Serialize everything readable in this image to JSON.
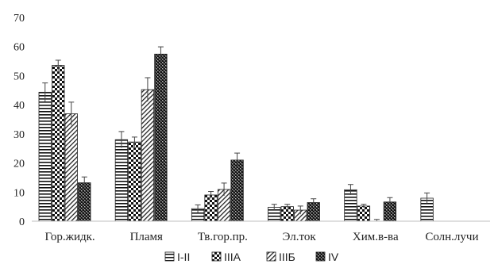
{
  "chart_data": {
    "type": "bar",
    "categories": [
      "Гор.жидк.",
      "Пламя",
      "Тв.гор.пр.",
      "Эл.ток",
      "Хим.в-ва",
      "Солн.лучи"
    ],
    "series": [
      {
        "name": "I-II",
        "values": [
          44.3,
          28.0,
          4.3,
          4.8,
          10.8,
          7.9
        ],
        "errors": [
          3.2,
          2.8,
          1.3,
          1.0,
          1.8,
          1.8
        ],
        "pattern": "hlines"
      },
      {
        "name": "IIIA",
        "values": [
          53.5,
          27.2,
          9.0,
          5.0,
          5.2,
          0
        ],
        "errors": [
          1.8,
          1.7,
          1.2,
          0.8,
          0.6,
          0
        ],
        "pattern": "checker"
      },
      {
        "name": "IIIБ",
        "values": [
          36.9,
          45.2,
          10.9,
          3.8,
          0,
          0
        ],
        "errors": [
          4.0,
          4.1,
          2.2,
          1.4,
          0.6,
          0
        ],
        "pattern": "diag"
      },
      {
        "name": "IV",
        "values": [
          13.2,
          57.4,
          21.0,
          6.4,
          6.6,
          0
        ],
        "errors": [
          2.0,
          2.5,
          2.4,
          1.3,
          1.5,
          0
        ],
        "pattern": "dense"
      }
    ],
    "ylim": [
      0,
      70
    ],
    "yticks": [
      0,
      10,
      20,
      30,
      40,
      50,
      60,
      70
    ],
    "grid": false,
    "legend": "bottom-center"
  }
}
